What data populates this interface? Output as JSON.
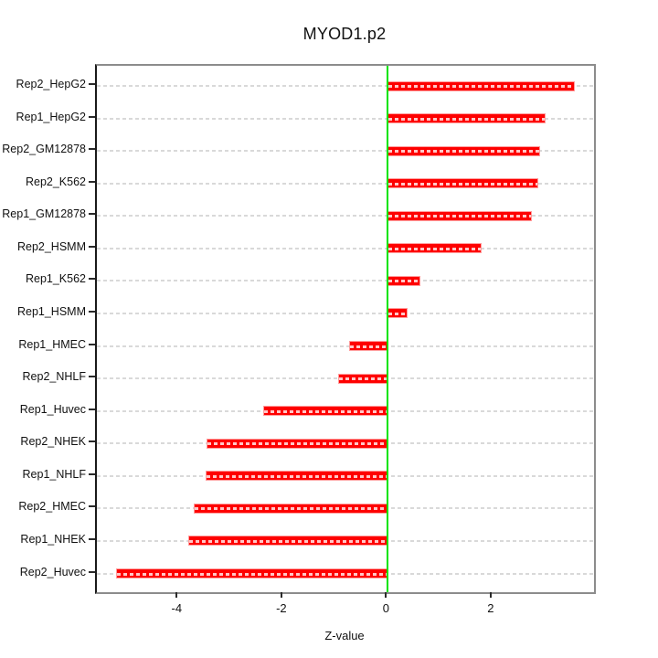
{
  "chart_data": {
    "type": "bar",
    "orientation": "horizontal",
    "title": "MYOD1.p2",
    "xlabel": "Z-value",
    "categories": [
      "Rep2_HepG2",
      "Rep1_HepG2",
      "Rep2_GM12878",
      "Rep2_K562",
      "Rep1_GM12878",
      "Rep2_HSMM",
      "Rep1_K562",
      "Rep1_HSMM",
      "Rep1_HMEC",
      "Rep2_NHLF",
      "Rep1_Huvec",
      "Rep2_NHEK",
      "Rep1_NHLF",
      "Rep2_HMEC",
      "Rep1_NHEK",
      "Rep2_Huvec"
    ],
    "values": [
      3.57,
      3.02,
      2.91,
      2.87,
      2.76,
      1.8,
      0.63,
      0.37,
      -0.74,
      -0.95,
      -2.38,
      -3.46,
      -3.49,
      -3.71,
      -3.82,
      -5.2
    ],
    "xlim": [
      -5.56,
      3.94
    ],
    "xticks": [
      -4,
      -2,
      0,
      2
    ],
    "xtick_labels": [
      "-4",
      "-2",
      "0",
      "2"
    ],
    "grid": "dashed horizontal line per category",
    "legend": "none",
    "colors": {
      "bar_fill": "#fe0000",
      "bar_border": "#ff9c9c",
      "zero_line": "#00e400",
      "gridline": "#d9d9d9",
      "box_border": "#8c8c8c",
      "axis_line": "#1a1a1a",
      "text": "#111111"
    }
  }
}
